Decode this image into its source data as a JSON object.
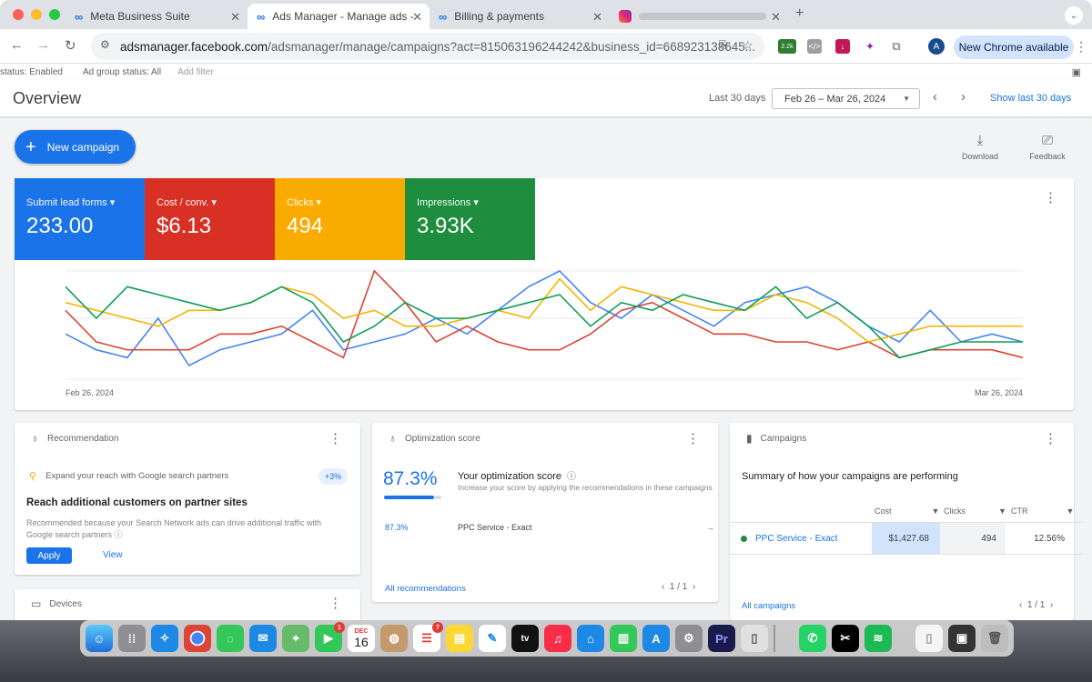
{
  "browser": {
    "tabs": [
      {
        "label": "Meta Business Suite",
        "icon": "meta-icon"
      },
      {
        "label": "Ads Manager - Manage ads -",
        "icon": "meta-icon"
      },
      {
        "label": "Billing & payments",
        "icon": "meta-icon"
      }
    ],
    "url_host": "adsmanager.facebook.com",
    "url_path": "/adsmanager/manage/campaigns?act=815063196244242&business_id=668923138645...",
    "ext_badge": "2.2k",
    "avatar_letter": "A",
    "new_chrome_label": "New Chrome available"
  },
  "filters": {
    "status": "status: Enabled",
    "ad_group_status": "Ad group status: All",
    "add_filter": "Add filter"
  },
  "overview": {
    "title": "Overview",
    "last_label": "Last 30 days",
    "date_range": "Feb 26 – Mar 26, 2024",
    "show_last": "Show last 30 days"
  },
  "actions": {
    "new_campaign": "New campaign",
    "download": "Download",
    "feedback": "Feedback"
  },
  "metrics": [
    {
      "label": "Submit lead forms",
      "value": "233.00",
      "color": "#1a73e8"
    },
    {
      "label": "Cost / conv.",
      "value": "$6.13",
      "color": "#d93025"
    },
    {
      "label": "Clicks",
      "value": "494",
      "color": "#f9ab00"
    },
    {
      "label": "Impressions",
      "value": "3.93K",
      "color": "#1e8e3e"
    }
  ],
  "chart_data": {
    "type": "line",
    "x_start": "Feb 26, 2024",
    "x_end": "Mar 26, 2024",
    "series": [
      {
        "color": "#4285f4",
        "values": [
          6,
          4,
          3,
          8,
          2,
          4,
          5,
          6,
          9,
          4,
          5,
          6,
          8,
          6,
          9,
          12,
          14,
          10,
          8,
          11,
          9,
          7,
          10,
          11,
          12,
          10,
          7,
          5,
          9,
          5,
          6,
          5
        ]
      },
      {
        "color": "#db4437",
        "values": [
          9,
          5,
          4,
          4,
          4,
          6,
          6,
          7,
          5,
          3,
          14,
          10,
          5,
          7,
          5,
          4,
          4,
          6,
          9,
          10,
          8,
          6,
          6,
          5,
          5,
          4,
          5,
          3,
          4,
          4,
          4,
          3
        ]
      },
      {
        "color": "#f4b400",
        "values": [
          10,
          9,
          8,
          7,
          9,
          9,
          10,
          12,
          11,
          8,
          9,
          7,
          7,
          8,
          9,
          8,
          13,
          9,
          12,
          11,
          10,
          9,
          9,
          11,
          10,
          8,
          5,
          6,
          7,
          7,
          7,
          7
        ]
      },
      {
        "color": "#0f9d58",
        "values": [
          12,
          8,
          12,
          11,
          10,
          9,
          10,
          12,
          10,
          5,
          7,
          10,
          8,
          8,
          9,
          10,
          11,
          7,
          10,
          9,
          11,
          10,
          9,
          12,
          8,
          10,
          7,
          3,
          4,
          5,
          5,
          5
        ]
      }
    ]
  },
  "recommendation": {
    "title": "Recommendation",
    "chip": "Expand your reach with Google search partners",
    "badge": "+3%",
    "heading": "Reach additional customers on partner sites",
    "desc": "Recommended because your Search Network ads can drive additional traffic with Google search partners",
    "apply": "Apply",
    "view": "View"
  },
  "devices": {
    "title": "Devices"
  },
  "optimization": {
    "title": "Optimization score",
    "score": "87.3%",
    "heading": "Your optimization score",
    "desc": "Increase your score by applying the recommendations in these campaigns",
    "row_score": "87.3%",
    "row_campaign": "PPC Service - Exact",
    "all": "All recommendations",
    "pager": "1 / 1"
  },
  "campaigns": {
    "title": "Campaigns",
    "summary": "Summary of how your campaigns are performing",
    "headers": [
      "Cost",
      "Clicks",
      "CTR"
    ],
    "row": {
      "name": "PPC Service - Exact",
      "cost": "$1,427.68",
      "clicks": "494",
      "ctr": "12.56%"
    },
    "all": "All campaigns",
    "pager": "1 / 1"
  },
  "dock": {
    "calendar_month": "DEC",
    "calendar_day": "16",
    "facetime_badge": "1",
    "reminders_badge": "7",
    "tv": "tv"
  }
}
